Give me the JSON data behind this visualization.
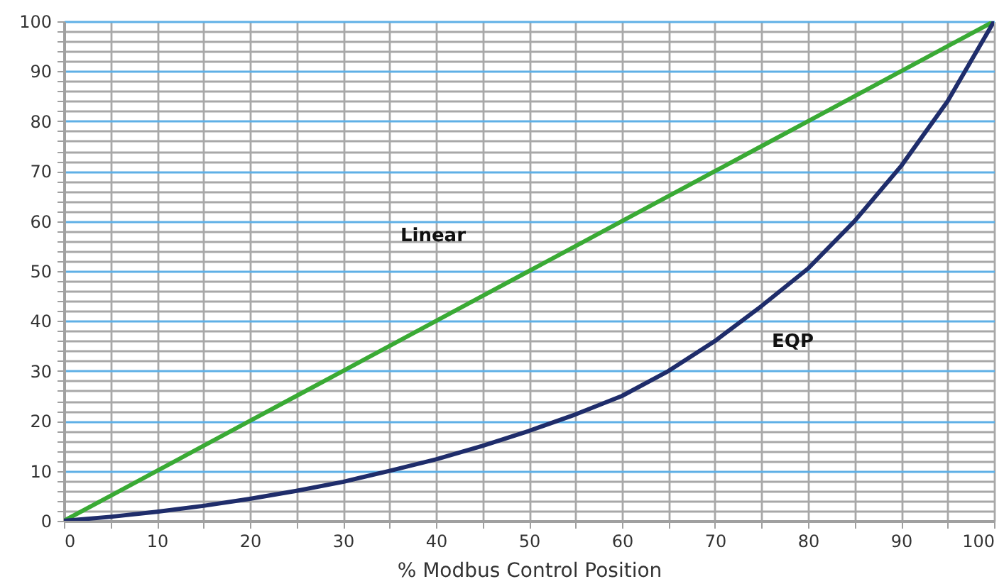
{
  "chart_data": {
    "type": "line",
    "xlabel": "% Modbus Control Position",
    "x": [
      0,
      5,
      10,
      15,
      20,
      25,
      30,
      35,
      40,
      45,
      50,
      55,
      60,
      65,
      70,
      75,
      80,
      85,
      90,
      95,
      100
    ],
    "series": [
      {
        "name": "Linear",
        "color": "#3aaa35",
        "values": [
          0,
          5,
          10,
          15,
          20,
          25,
          30,
          35,
          40,
          45,
          50,
          55,
          60,
          65,
          70,
          75,
          80,
          85,
          90,
          95,
          100
        ]
      },
      {
        "name": "EQP",
        "color": "#1f2d6b",
        "values": [
          0,
          0.8,
          1.8,
          3,
          4.4,
          6,
          7.8,
          10,
          12.3,
          15,
          18,
          21.3,
          25,
          30,
          36,
          43,
          50.5,
          60,
          71,
          84,
          100
        ]
      }
    ],
    "xlim": [
      0,
      100
    ],
    "ylim": [
      0,
      100
    ],
    "xticks": [
      0,
      {
        "value": 5,
        "label": null
      },
      10,
      {
        "value": 15,
        "label": null
      },
      20,
      {
        "value": 25,
        "label": null
      },
      30,
      {
        "value": 35,
        "label": null
      },
      40,
      {
        "value": 45,
        "label": null
      },
      50,
      {
        "value": 55,
        "label": null
      },
      60,
      {
        "value": 65,
        "label": null
      },
      70,
      {
        "value": 75,
        "label": null
      },
      80,
      {
        "value": 85,
        "label": null
      },
      90,
      {
        "value": 95,
        "label": null
      },
      100
    ],
    "yticks": [
      0,
      {
        "value": 2,
        "label": null
      },
      {
        "value": 4,
        "label": null
      },
      {
        "value": 6,
        "label": null
      },
      {
        "value": 8,
        "label": null
      },
      10,
      {
        "value": 12,
        "label": null
      },
      {
        "value": 14,
        "label": null
      },
      {
        "value": 16,
        "label": null
      },
      {
        "value": 18,
        "label": null
      },
      20,
      {
        "value": 22,
        "label": null
      },
      {
        "value": 24,
        "label": null
      },
      {
        "value": 26,
        "label": null
      },
      {
        "value": 28,
        "label": null
      },
      30,
      {
        "value": 32,
        "label": null
      },
      {
        "value": 34,
        "label": null
      },
      {
        "value": 36,
        "label": null
      },
      {
        "value": 38,
        "label": null
      },
      40,
      {
        "value": 42,
        "label": null
      },
      {
        "value": 44,
        "label": null
      },
      {
        "value": 46,
        "label": null
      },
      {
        "value": 48,
        "label": null
      },
      50,
      {
        "value": 52,
        "label": null
      },
      {
        "value": 54,
        "label": null
      },
      {
        "value": 56,
        "label": null
      },
      {
        "value": 58,
        "label": null
      },
      60,
      {
        "value": 62,
        "label": null
      },
      {
        "value": 64,
        "label": null
      },
      {
        "value": 66,
        "label": null
      },
      {
        "value": 68,
        "label": null
      },
      70,
      {
        "value": 72,
        "label": null
      },
      {
        "value": 74,
        "label": null
      },
      {
        "value": 76,
        "label": null
      },
      {
        "value": 78,
        "label": null
      },
      80,
      {
        "value": 82,
        "label": null
      },
      {
        "value": 84,
        "label": null
      },
      {
        "value": 86,
        "label": null
      },
      {
        "value": 88,
        "label": null
      },
      90,
      {
        "value": 92,
        "label": null
      },
      {
        "value": 94,
        "label": null
      },
      {
        "value": 96,
        "label": null
      },
      {
        "value": 98,
        "label": null
      },
      100
    ],
    "grid": true,
    "marker": "none",
    "line_style": "solid"
  }
}
